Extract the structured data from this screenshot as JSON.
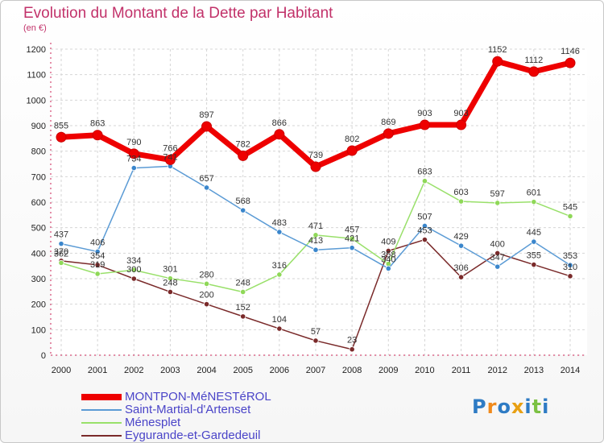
{
  "title": "Evolution du Montant de la Dette par Habitant",
  "subtitle": "(en €)",
  "logo": "Proxiti",
  "chart_data": {
    "type": "line",
    "title": "Evolution du Montant de la Dette par Habitant",
    "ylabel": "(en €)",
    "ylim": [
      0,
      1200
    ],
    "y_ticks": [
      0,
      100,
      200,
      300,
      400,
      500,
      600,
      700,
      800,
      900,
      1000,
      1100,
      1200
    ],
    "grid": true,
    "legend_position": "bottom-left",
    "x": [
      "2000",
      "2001",
      "2002",
      "2003",
      "2004",
      "2005",
      "2006",
      "2007",
      "2008",
      "2009",
      "2010",
      "2011",
      "2012",
      "2013",
      "2014"
    ],
    "series": [
      {
        "name": "MONTPON-MéNESTéROL",
        "color": "#ee0000",
        "point_color": "#ee0000",
        "width": 7,
        "values": [
          855,
          863,
          790,
          766,
          897,
          782,
          866,
          739,
          802,
          869,
          903,
          903,
          1152,
          1112,
          1146
        ]
      },
      {
        "name": "Saint-Martial-d'Artenset",
        "color": "#5b9bd5",
        "point_color": "#3a86cc",
        "width": 1.5,
        "values": [
          437,
          406,
          734,
          741,
          657,
          568,
          483,
          413,
          421,
          340,
          507,
          429,
          347,
          445,
          353
        ]
      },
      {
        "name": "Ménesplet",
        "color": "#99e06a",
        "point_color": "#8fd858",
        "width": 1.5,
        "values": [
          362,
          319,
          334,
          301,
          280,
          248,
          316,
          471,
          457,
          358,
          683,
          603,
          597,
          601,
          545
        ]
      },
      {
        "name": "Eygurande-et-Gardedeuil",
        "color": "#7a2a2a",
        "point_color": "#7a2a2a",
        "width": 1.5,
        "values": [
          370,
          354,
          300,
          248,
          200,
          152,
          104,
          57,
          23,
          409,
          453,
          306,
          400,
          355,
          310
        ]
      }
    ]
  }
}
